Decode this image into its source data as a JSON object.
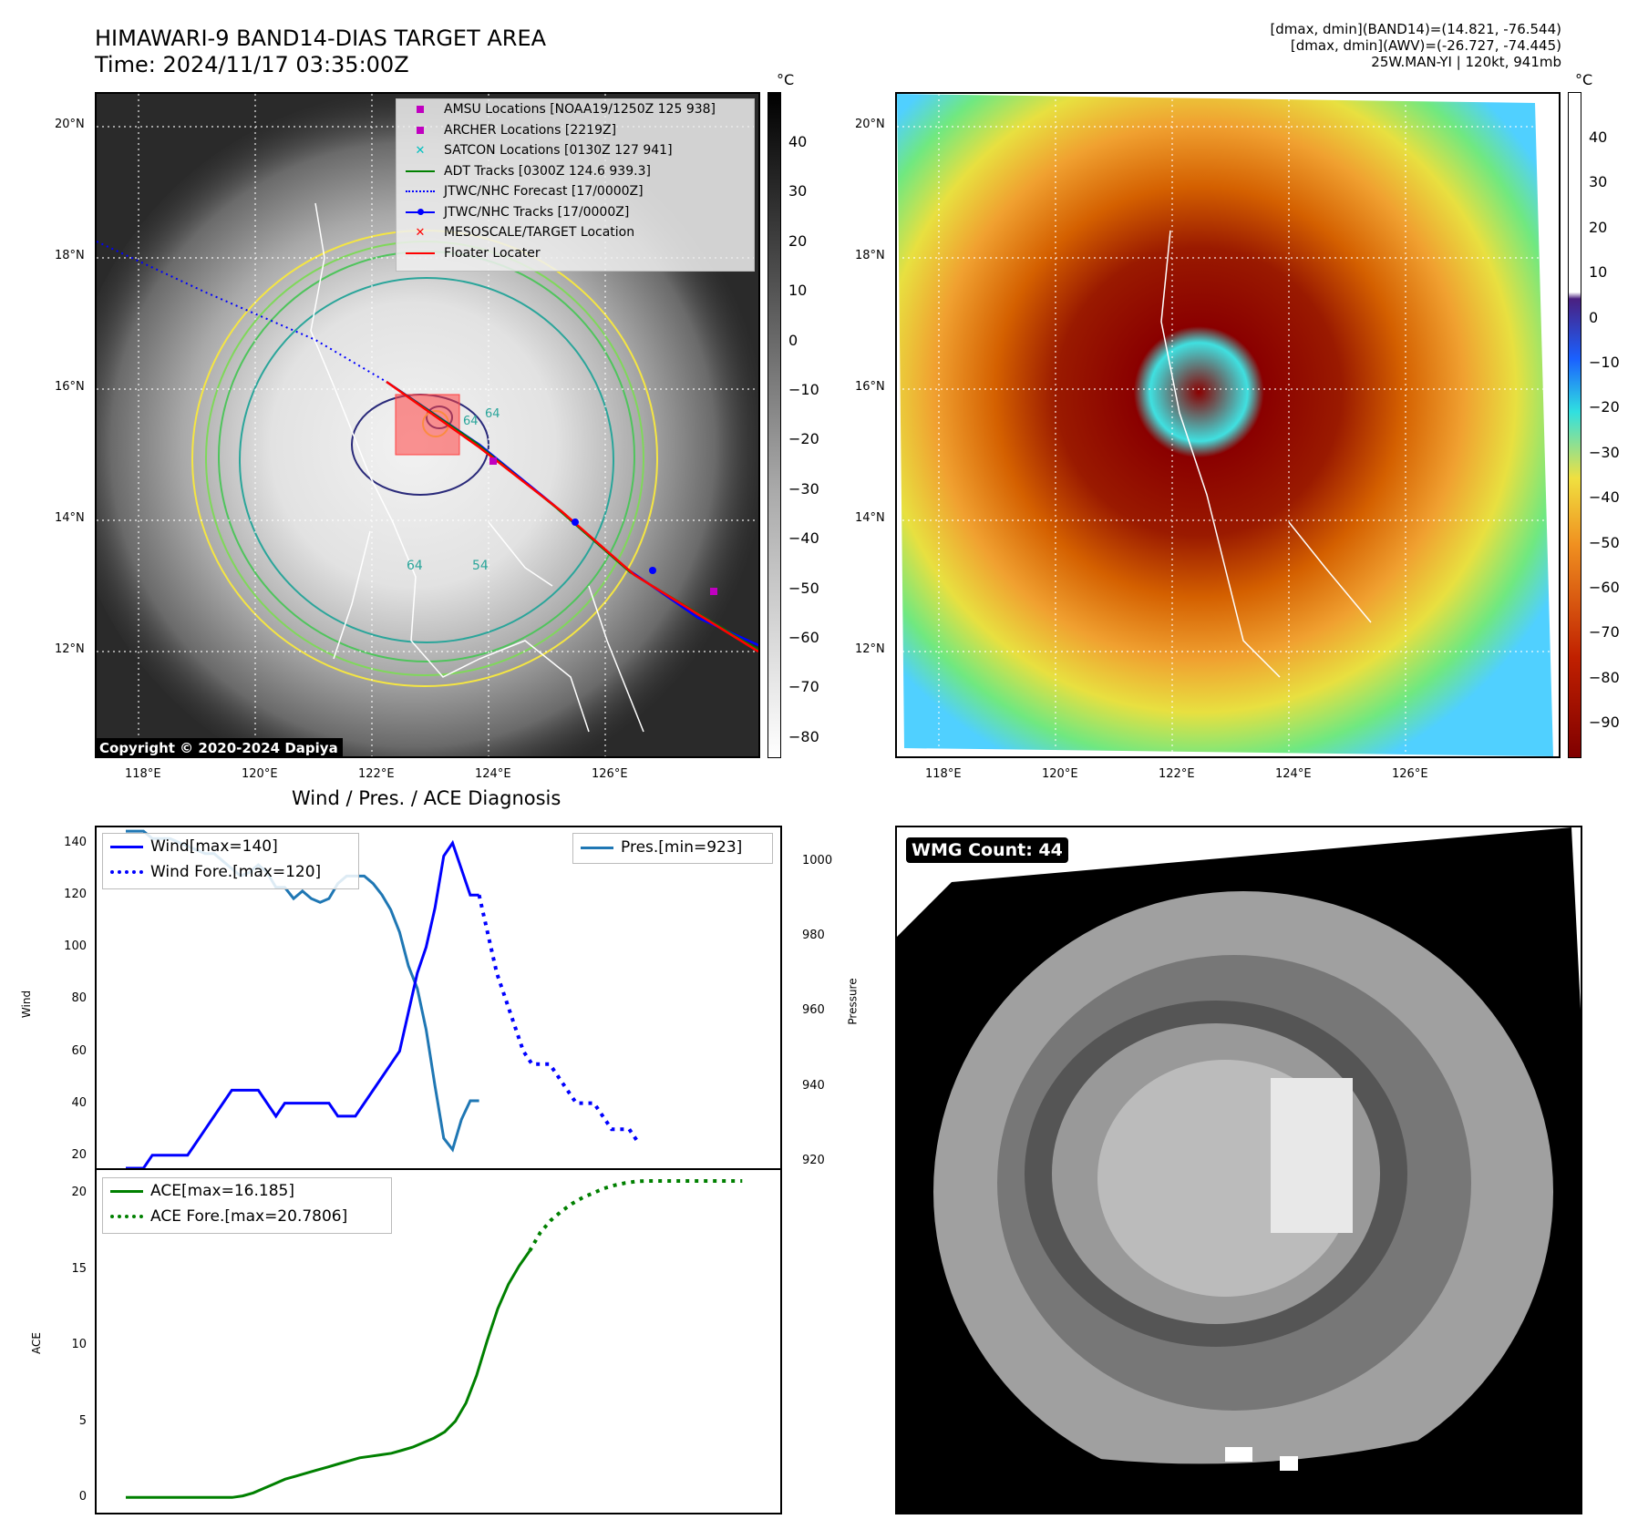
{
  "header": {
    "title_line1": "HIMAWARI-9 BAND14-DIAS TARGET AREA",
    "title_line2": "Time: 2024/11/17 03:35:00Z",
    "info_line1": "[dmax, dmin](BAND14)=(14.821, -76.544)",
    "info_line2": "[dmax, dmin](AWV)=(-26.727, -74.445)",
    "info_line3": "25W.MAN-YI | 120kt, 941mb"
  },
  "map": {
    "lat_labels": [
      "20°N",
      "18°N",
      "16°N",
      "14°N",
      "12°N"
    ],
    "lon_labels": [
      "118°E",
      "120°E",
      "122°E",
      "124°E",
      "126°E"
    ],
    "copyright": "Copyright © 2020-2024 Dapiya",
    "contour_labels": [
      "64",
      "64",
      "54",
      "64"
    ],
    "legend": [
      {
        "label": "AMSU Locations [NOAA19/1250Z 125 938]",
        "color": "#c000c0"
      },
      {
        "label": "ARCHER Locations [2219Z]",
        "color": "#c000c0"
      },
      {
        "label": "SATCON Locations [0130Z 127 941]",
        "color": "#00c0c0"
      },
      {
        "label": "ADT Tracks [0300Z 124.6 939.3]",
        "color": "#008000"
      },
      {
        "label": "JTWC/NHC Forecast [17/0000Z]",
        "color": "#0000ff"
      },
      {
        "label": "JTWC/NHC Tracks [17/0000Z]",
        "color": "#0000ff"
      },
      {
        "label": "MESOSCALE/TARGET Location",
        "color": "#ff0000"
      },
      {
        "label": "Floater Locater",
        "color": "#ff0000"
      }
    ]
  },
  "colorbars": {
    "unit": "°C",
    "left_ticks": [
      "40",
      "30",
      "20",
      "10",
      "0",
      "−10",
      "−20",
      "−30",
      "−40",
      "−50",
      "−60",
      "−70",
      "−80"
    ],
    "right_ticks": [
      "40",
      "30",
      "20",
      "10",
      "0",
      "−10",
      "−20",
      "−30",
      "−40",
      "−50",
      "−60",
      "−70",
      "−80",
      "−90"
    ]
  },
  "diagnosis": {
    "title": "Wind / Pres. / ACE Diagnosis",
    "wind_ylabel": "Wind",
    "pres_ylabel": "Pressure",
    "ace_ylabel": "ACE"
  },
  "wmg": {
    "label": "WMG Count: 44"
  },
  "chart_data": [
    {
      "type": "line",
      "title": "Wind / Pres. / ACE Diagnosis",
      "ylabel": "Wind",
      "ylim": [
        15,
        146
      ],
      "yticks": [
        20,
        40,
        60,
        80,
        100,
        120,
        140
      ],
      "series": [
        {
          "name": "Wind[max=140]",
          "color": "#0000ff",
          "style": "solid",
          "values": [
            15,
            15,
            15,
            20,
            20,
            20,
            20,
            20,
            25,
            30,
            35,
            40,
            45,
            45,
            45,
            45,
            40,
            35,
            40,
            40,
            40,
            40,
            40,
            40,
            35,
            35,
            35,
            40,
            45,
            50,
            55,
            60,
            75,
            90,
            100,
            115,
            135,
            140,
            130,
            120,
            120
          ]
        },
        {
          "name": "Wind Fore.[max=120]",
          "color": "#0000ff",
          "style": "dotted",
          "start": 40,
          "values": [
            120,
            105,
            90,
            80,
            70,
            60,
            55,
            55,
            55,
            50,
            45,
            40,
            40,
            40,
            35,
            30,
            30,
            30,
            25
          ]
        }
      ]
    },
    {
      "type": "line",
      "ylabel": "Pressure",
      "ylim": [
        918,
        1009
      ],
      "yticks": [
        920,
        940,
        960,
        980,
        1000
      ],
      "series": [
        {
          "name": "Pres.[min=923]",
          "color": "#1f77b4",
          "style": "solid",
          "values": [
            1008,
            1008,
            1008,
            1006,
            1006,
            1006,
            1005,
            1004,
            1003,
            1002,
            1002,
            1000,
            998,
            996,
            997,
            999,
            997,
            993,
            993,
            990,
            992,
            990,
            989,
            990,
            994,
            996,
            996,
            996,
            994,
            991,
            987,
            981,
            972,
            966,
            955,
            940,
            926,
            923,
            931,
            936,
            936
          ]
        }
      ]
    },
    {
      "type": "line",
      "ylabel": "ACE",
      "ylim": [
        -1,
        21.5
      ],
      "yticks": [
        0,
        5,
        10,
        15,
        20
      ],
      "series": [
        {
          "name": "ACE[max=16.185]",
          "color": "#008000",
          "style": "solid",
          "values": [
            0,
            0,
            0,
            0,
            0,
            0,
            0,
            0,
            0,
            0,
            0,
            0.1,
            0.3,
            0.6,
            0.9,
            1.2,
            1.4,
            1.6,
            1.8,
            2.0,
            2.2,
            2.4,
            2.6,
            2.7,
            2.8,
            2.9,
            3.1,
            3.3,
            3.6,
            3.9,
            4.3,
            5.0,
            6.2,
            8.0,
            10.3,
            12.4,
            14.0,
            15.2,
            16.185
          ]
        },
        {
          "name": "ACE Fore.[max=20.7806]",
          "color": "#008000",
          "style": "dotted",
          "start": 38,
          "values": [
            16.185,
            17.4,
            18.2,
            18.8,
            19.3,
            19.7,
            20.0,
            20.3,
            20.5,
            20.65,
            20.75,
            20.78,
            20.78,
            20.78,
            20.78,
            20.78,
            20.78,
            20.78,
            20.78,
            20.78,
            20.78
          ]
        }
      ]
    }
  ]
}
